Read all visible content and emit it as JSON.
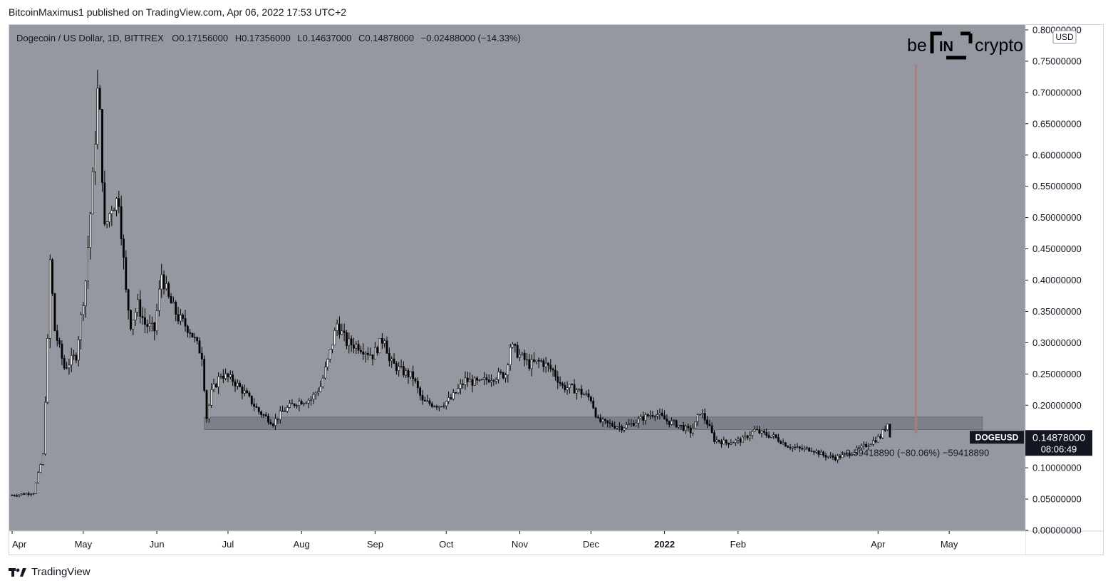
{
  "header": {
    "published_text": "BitcoinMaximus1 published on TradingView.com, Apr 06, 2022 17:53 UTC+2"
  },
  "footer": {
    "brand": "TradingView"
  },
  "watermark": {
    "left": "be",
    "box": "IN",
    "right": "crypto"
  },
  "legend": {
    "symbol": "Dogecoin / US Dollar, 1D, BITTREX",
    "o_label": "O",
    "o_value": "0.17156000",
    "h_label": "H",
    "h_value": "0.17356000",
    "l_label": "L",
    "l_value": "0.14637000",
    "c_label": "C",
    "c_value": "0.14878000",
    "change": "−0.02488000 (−14.33%)"
  },
  "price_tag": {
    "symbol": "DOGEUSD",
    "price": "0.14878000",
    "countdown": "08:06:49"
  },
  "measure_label": "−0.59418890 (−80.06%) −59418890",
  "currency_badge": "USD",
  "colors": {
    "plot_bg": "#9598a1",
    "candle": "#000000",
    "zone": "#787b86",
    "vline": "#b07a7e",
    "axis_bg": "#ffffff",
    "tag_bg": "#131722"
  },
  "chart_data": {
    "type": "candlestick",
    "symbol": "DOGEUSD",
    "interval": "1D",
    "exchange": "BITTREX",
    "y_axis": {
      "min": 0,
      "max": 0.8,
      "ticks": [
        "0.00000000",
        "0.05000000",
        "0.10000000",
        "0.15000000",
        "0.20000000",
        "0.25000000",
        "0.30000000",
        "0.35000000",
        "0.40000000",
        "0.45000000",
        "0.50000000",
        "0.55000000",
        "0.60000000",
        "0.65000000",
        "0.70000000",
        "0.75000000",
        "0.80000000"
      ]
    },
    "x_axis": {
      "start": "2021-04-01",
      "end": "2022-05-31",
      "ticks": [
        {
          "label": "Apr",
          "date": "2021-04-01"
        },
        {
          "label": "May",
          "date": "2021-05-01"
        },
        {
          "label": "Jun",
          "date": "2021-06-01"
        },
        {
          "label": "Jul",
          "date": "2021-07-01"
        },
        {
          "label": "Aug",
          "date": "2021-08-01"
        },
        {
          "label": "Sep",
          "date": "2021-09-01"
        },
        {
          "label": "Oct",
          "date": "2021-10-01"
        },
        {
          "label": "Nov",
          "date": "2021-11-01"
        },
        {
          "label": "Dec",
          "date": "2021-12-01"
        },
        {
          "label": "2022",
          "date": "2022-01-01",
          "bold": true
        },
        {
          "label": "Feb",
          "date": "2022-02-01"
        },
        {
          "label": "Apr",
          "date": "2022-04-01"
        },
        {
          "label": "May",
          "date": "2022-05-01"
        }
      ]
    },
    "price_path": [
      [
        "2021-04-01",
        0.056
      ],
      [
        "2021-04-10",
        0.06
      ],
      [
        "2021-04-14",
        0.12
      ],
      [
        "2021-04-16",
        0.3
      ],
      [
        "2021-04-17",
        0.43
      ],
      [
        "2021-04-19",
        0.32
      ],
      [
        "2021-04-23",
        0.26
      ],
      [
        "2021-04-28",
        0.28
      ],
      [
        "2021-05-02",
        0.4
      ],
      [
        "2021-05-05",
        0.56
      ],
      [
        "2021-05-07",
        0.7
      ],
      [
        "2021-05-08",
        0.66
      ],
      [
        "2021-05-10",
        0.48
      ],
      [
        "2021-05-13",
        0.52
      ],
      [
        "2021-05-16",
        0.53
      ],
      [
        "2021-05-19",
        0.38
      ],
      [
        "2021-05-21",
        0.33
      ],
      [
        "2021-05-24",
        0.36
      ],
      [
        "2021-05-27",
        0.33
      ],
      [
        "2021-05-31",
        0.32
      ],
      [
        "2021-06-03",
        0.41
      ],
      [
        "2021-06-06",
        0.37
      ],
      [
        "2021-06-10",
        0.34
      ],
      [
        "2021-06-15",
        0.32
      ],
      [
        "2021-06-20",
        0.28
      ],
      [
        "2021-06-22",
        0.18
      ],
      [
        "2021-06-24",
        0.22
      ],
      [
        "2021-06-28",
        0.25
      ],
      [
        "2021-07-03",
        0.24
      ],
      [
        "2021-07-08",
        0.22
      ],
      [
        "2021-07-14",
        0.19
      ],
      [
        "2021-07-20",
        0.172
      ],
      [
        "2021-07-24",
        0.19
      ],
      [
        "2021-07-30",
        0.205
      ],
      [
        "2021-08-05",
        0.21
      ],
      [
        "2021-08-09",
        0.23
      ],
      [
        "2021-08-12",
        0.27
      ],
      [
        "2021-08-16",
        0.33
      ],
      [
        "2021-08-20",
        0.3
      ],
      [
        "2021-08-25",
        0.295
      ],
      [
        "2021-08-31",
        0.28
      ],
      [
        "2021-09-05",
        0.31
      ],
      [
        "2021-09-07",
        0.27
      ],
      [
        "2021-09-12",
        0.255
      ],
      [
        "2021-09-17",
        0.245
      ],
      [
        "2021-09-21",
        0.205
      ],
      [
        "2021-09-28",
        0.2
      ],
      [
        "2021-10-03",
        0.21
      ],
      [
        "2021-10-09",
        0.24
      ],
      [
        "2021-10-15",
        0.235
      ],
      [
        "2021-10-20",
        0.245
      ],
      [
        "2021-10-26",
        0.25
      ],
      [
        "2021-10-28",
        0.295
      ],
      [
        "2021-11-01",
        0.28
      ],
      [
        "2021-11-05",
        0.265
      ],
      [
        "2021-11-10",
        0.27
      ],
      [
        "2021-11-15",
        0.255
      ],
      [
        "2021-11-19",
        0.23
      ],
      [
        "2021-11-25",
        0.225
      ],
      [
        "2021-12-01",
        0.21
      ],
      [
        "2021-12-04",
        0.175
      ],
      [
        "2021-12-08",
        0.17
      ],
      [
        "2021-12-14",
        0.165
      ],
      [
        "2021-12-18",
        0.17
      ],
      [
        "2021-12-23",
        0.18
      ],
      [
        "2021-12-28",
        0.188
      ],
      [
        "2022-01-02",
        0.175
      ],
      [
        "2022-01-07",
        0.168
      ],
      [
        "2022-01-12",
        0.158
      ],
      [
        "2022-01-14",
        0.17
      ],
      [
        "2022-01-16",
        0.19
      ],
      [
        "2022-01-19",
        0.172
      ],
      [
        "2022-01-22",
        0.145
      ],
      [
        "2022-01-27",
        0.14
      ],
      [
        "2022-02-03",
        0.145
      ],
      [
        "2022-02-08",
        0.16
      ],
      [
        "2022-02-11",
        0.155
      ],
      [
        "2022-02-16",
        0.15
      ],
      [
        "2022-02-22",
        0.135
      ],
      [
        "2022-02-27",
        0.13
      ],
      [
        "2022-03-04",
        0.13
      ],
      [
        "2022-03-09",
        0.12
      ],
      [
        "2022-03-14",
        0.116
      ],
      [
        "2022-03-18",
        0.12
      ],
      [
        "2022-03-23",
        0.128
      ],
      [
        "2022-03-28",
        0.138
      ],
      [
        "2022-04-02",
        0.15
      ],
      [
        "2022-04-05",
        0.171
      ],
      [
        "2022-04-06",
        0.149
      ]
    ],
    "annotations": {
      "support_zone": {
        "x_start": "2021-06-21",
        "x_end": "2022-05-15",
        "y_low": 0.161,
        "y_high": 0.181
      },
      "vertical_line": {
        "date": "2022-04-17",
        "y_low": 0.155,
        "y_high": 0.745
      },
      "measure": {
        "text": "−0.59418890 (−80.06%) −59418890",
        "date": "2022-03-16",
        "y": 0.119
      }
    },
    "last_price": 0.14878
  }
}
